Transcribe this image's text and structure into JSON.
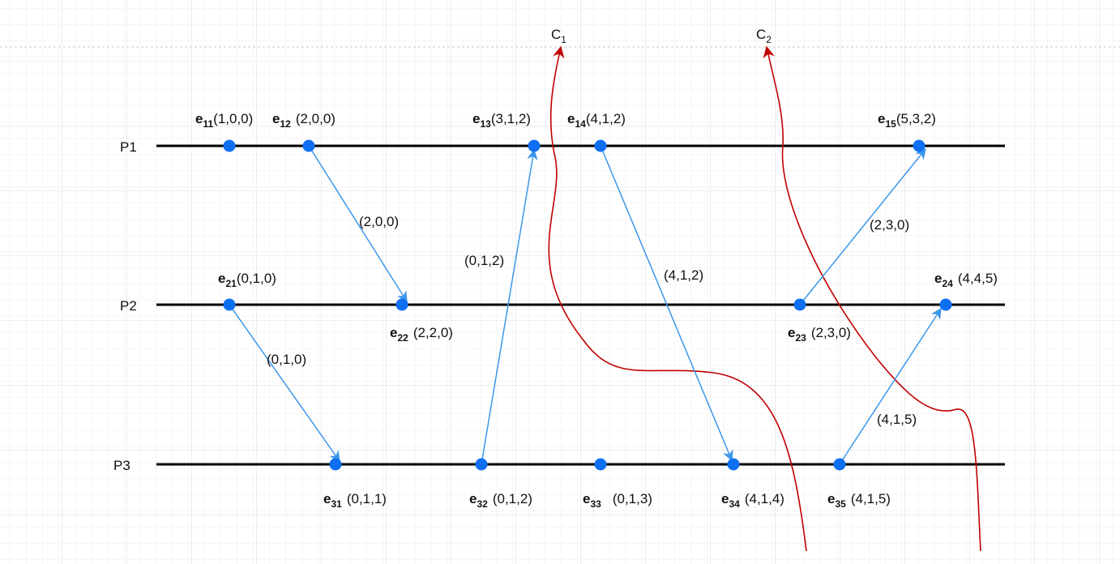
{
  "processes": [
    {
      "id": "P1",
      "label": "P1"
    },
    {
      "id": "P2",
      "label": "P2"
    },
    {
      "id": "P3",
      "label": "P3"
    }
  ],
  "events": [
    {
      "id": "e11",
      "base": "e",
      "sub": "11",
      "clock": "(1,0,0)"
    },
    {
      "id": "e12",
      "base": "e",
      "sub": "12",
      "clock": "(2,0,0)"
    },
    {
      "id": "e13",
      "base": "e",
      "sub": "13",
      "clock": "(3,1,2)"
    },
    {
      "id": "e14",
      "base": "e",
      "sub": "14",
      "clock": "(4,1,2)"
    },
    {
      "id": "e15",
      "base": "e",
      "sub": "15",
      "clock": "(5,3,2)"
    },
    {
      "id": "e21",
      "base": "e",
      "sub": "21",
      "clock": "(0,1,0)"
    },
    {
      "id": "e22",
      "base": "e",
      "sub": "22",
      "clock": "(2,2,0)"
    },
    {
      "id": "e23",
      "base": "e",
      "sub": "23",
      "clock": "(2,3,0)"
    },
    {
      "id": "e24",
      "base": "e",
      "sub": "24",
      "clock": "(4,4,5)"
    },
    {
      "id": "e31",
      "base": "e",
      "sub": "31",
      "clock": "(0,1,1)"
    },
    {
      "id": "e32",
      "base": "e",
      "sub": "32",
      "clock": "(0,1,2)"
    },
    {
      "id": "e33",
      "base": "e",
      "sub": "33",
      "clock": "(0,1,3)"
    },
    {
      "id": "e34",
      "base": "e",
      "sub": "34",
      "clock": "(4,1,4)"
    },
    {
      "id": "e35",
      "base": "e",
      "sub": "35",
      "clock": "(4,1,5)"
    }
  ],
  "messages": [
    {
      "from": "e12",
      "to": "e22",
      "label": "(2,0,0)"
    },
    {
      "from": "e21",
      "to": "e31",
      "label": "(0,1,0)"
    },
    {
      "from": "e32",
      "to": "e13",
      "label": "(0,1,2)"
    },
    {
      "from": "e14",
      "to": "e34",
      "label": "(4,1,2)"
    },
    {
      "from": "e23",
      "to": "e15",
      "label": "(2,3,0)"
    },
    {
      "from": "e35",
      "to": "e24",
      "label": "(4,1,5)"
    }
  ],
  "cuts": [
    {
      "id": "C1",
      "base": "C",
      "sub": "1"
    },
    {
      "id": "C2",
      "base": "C",
      "sub": "2"
    }
  ],
  "colors": {
    "process_line": "#000000",
    "event_dot": "#0f6ff2",
    "message_arrow": "#3b97ea",
    "cut_line": "#c00000",
    "grid": "#e6e6e6"
  }
}
